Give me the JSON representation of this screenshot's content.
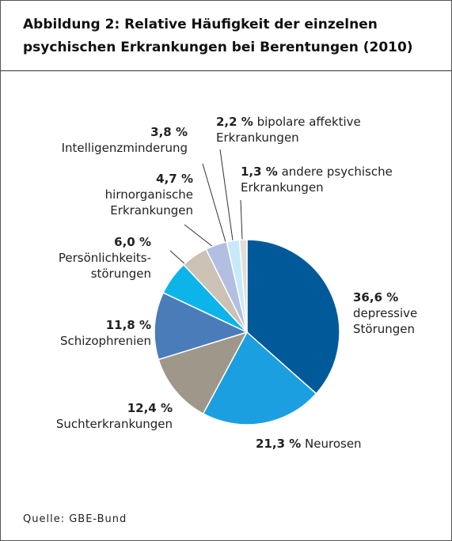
{
  "chart_data": {
    "type": "pie",
    "title": "Abbildung 2: Relative Häufigkeit der einzelnen\npsychischen Erkrankungen bei Berentungen (2010)",
    "categories": [
      "depressive\nStörungen",
      "Neurosen",
      "Suchterkrankungen",
      "Schizophrenien",
      "Persönlichkeits-\nstörungen",
      "hirnorganische\nErkrankungen",
      "Intelligenzminderung",
      "bipolare affektive\nErkrankungen",
      "andere psychische\nErkrankungen"
    ],
    "values": [
      36.6,
      21.3,
      12.4,
      11.8,
      6.0,
      4.7,
      3.8,
      2.2,
      1.3
    ],
    "value_labels": [
      "36,6 %",
      "21,3 %",
      "12,4 %",
      "11,8 %",
      "6,0 %",
      "4,7 %",
      "3,8 %",
      "2,2 %",
      "1,3 %"
    ],
    "colors": [
      "#005a9a",
      "#1c9fe0",
      "#9f978a",
      "#4a7cb9",
      "#0db4e9",
      "#cbc2b5",
      "#b3bfe2",
      "#c8e9f9",
      "#e2ddd6"
    ],
    "source": "Quelle: GBE-Bund"
  }
}
